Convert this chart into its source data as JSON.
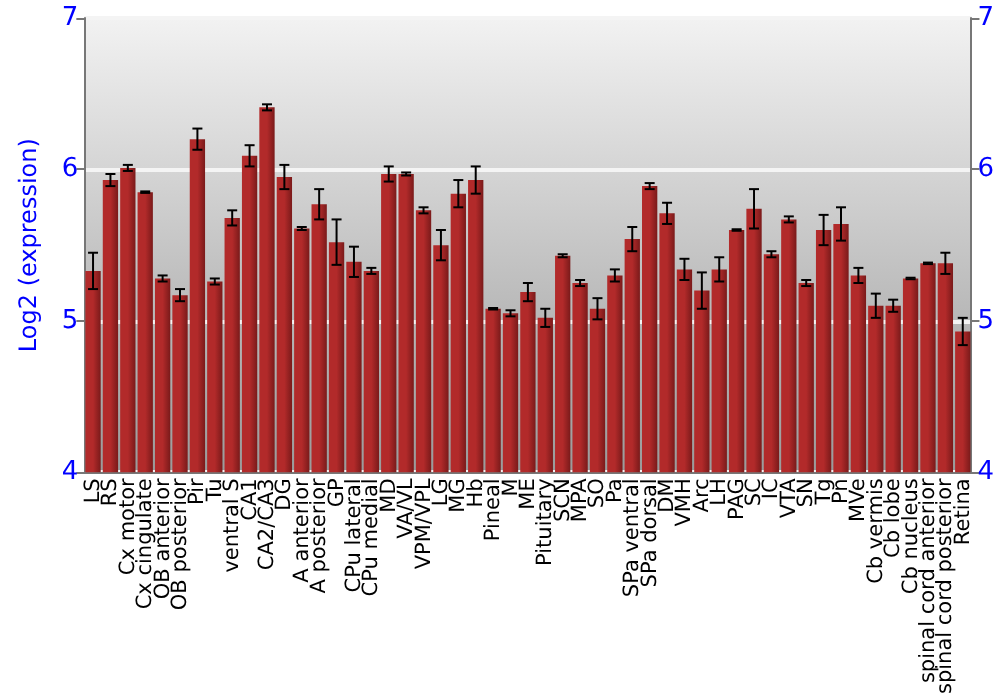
{
  "chart_data": {
    "type": "bar",
    "ylabel": "Log2 (expression)",
    "categories": [
      "LS",
      "RS",
      "Cx motor",
      "Cx cingulate",
      "OB anterior",
      "OB posterior",
      "Pir",
      "Tu",
      "ventral S",
      "CA1",
      "CA2/CA3",
      "DG",
      "A anterior",
      "A posterior",
      "GP",
      "CPu lateral",
      "CPu medial",
      "MD",
      "VA/VL",
      "VPM/VPL",
      "LG",
      "MG",
      "Hb",
      "Pineal",
      "M",
      "ME",
      "Pituitary",
      "SCN",
      "MPA",
      "SO",
      "Pa",
      "SPa ventral",
      "SPa dorsal",
      "DM",
      "VMH",
      "Arc",
      "LH",
      "PAG",
      "SC",
      "IC",
      "VTA",
      "SN",
      "Tg",
      "Pn",
      "MVe",
      "Cb vermis",
      "Cb lobe",
      "Cb nucleus",
      "spinal cord anterior",
      "spinal cord posterior",
      "Retina"
    ],
    "series": [
      {
        "color": "#b22a2a",
        "values": [
          5.33,
          5.93,
          6.01,
          5.85,
          5.28,
          5.17,
          6.2,
          5.26,
          5.68,
          6.09,
          6.41,
          5.95,
          5.61,
          5.77,
          5.52,
          5.39,
          5.33,
          5.97,
          5.97,
          5.73,
          5.5,
          5.84,
          5.93,
          5.08,
          5.05,
          5.19,
          5.02,
          5.43,
          5.25,
          5.08,
          5.3,
          5.54,
          5.89,
          5.71,
          5.34,
          5.2,
          5.34,
          5.6,
          5.74,
          5.44,
          5.67,
          5.25,
          5.6,
          5.64,
          5.3,
          5.1,
          5.1,
          5.28,
          5.38,
          5.38,
          4.93
        ],
        "errors": [
          0.12,
          0.04,
          0.02,
          0.005,
          0.02,
          0.04,
          0.07,
          0.02,
          0.05,
          0.07,
          0.02,
          0.08,
          0.01,
          0.1,
          0.15,
          0.1,
          0.02,
          0.05,
          0.01,
          0.02,
          0.1,
          0.09,
          0.09,
          0.005,
          0.02,
          0.06,
          0.06,
          0.01,
          0.02,
          0.07,
          0.04,
          0.08,
          0.02,
          0.07,
          0.07,
          0.12,
          0.08,
          0.005,
          0.13,
          0.02,
          0.02,
          0.02,
          0.1,
          0.11,
          0.05,
          0.08,
          0.04,
          0.005,
          0.005,
          0.07,
          0.09
        ]
      }
    ],
    "ylim": [
      4,
      7
    ],
    "yticks": [
      4,
      5,
      6,
      7
    ],
    "y2lim": [
      4,
      7
    ],
    "y2ticks": [
      4,
      5,
      6,
      7
    ],
    "grid": "y"
  }
}
